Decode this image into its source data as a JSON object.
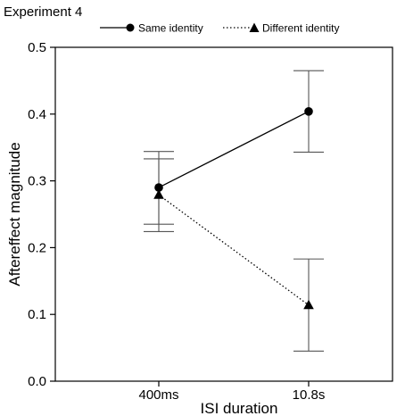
{
  "chart_data": {
    "type": "line",
    "title": "Experiment 4",
    "xlabel": "ISI duration",
    "ylabel": "Aftereffect magnitude",
    "categories": [
      "400ms",
      "10.8s"
    ],
    "ylim": [
      0,
      0.5
    ],
    "yticks": [
      "0.0",
      "0.1",
      "0.2",
      "0.3",
      "0.4",
      "0.5"
    ],
    "grid": false,
    "legend_position": "top",
    "series": [
      {
        "name": "Same identity",
        "marker": "circle",
        "line_style": "solid",
        "values": [
          0.29,
          0.404
        ],
        "error_low": [
          0.224,
          0.343
        ],
        "error_high": [
          0.344,
          0.465
        ]
      },
      {
        "name": "Different identity",
        "marker": "triangle",
        "line_style": "dotted",
        "values": [
          0.279,
          0.114
        ],
        "error_low": [
          0.235,
          0.045
        ],
        "error_high": [
          0.333,
          0.183
        ]
      }
    ],
    "colors": {
      "series": "#000000",
      "error_bars": "#555555",
      "axes": "#000000"
    }
  }
}
